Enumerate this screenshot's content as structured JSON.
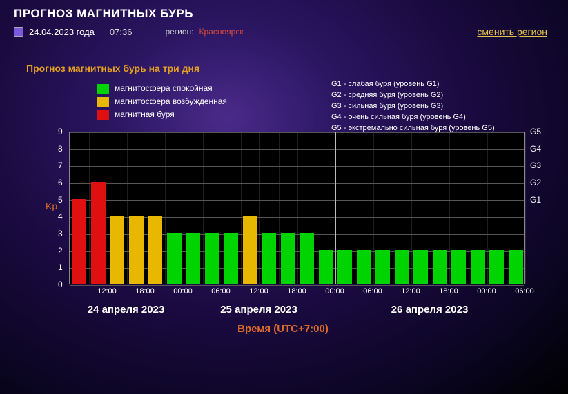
{
  "header": {
    "title": "ПРОГНОЗ МАГНИТНЫХ БУРЬ",
    "date": "24.04.2023 года",
    "time": "07:36",
    "region_label": "регион:",
    "region_value": "Красноярск",
    "change_region": "сменить регион"
  },
  "section_title": "Прогноз магнитных бурь на три дня",
  "legend": {
    "items": [
      {
        "color": "#00d400",
        "label": "магнитосфера спокойная"
      },
      {
        "color": "#e8b800",
        "label": "магнитосфера возбужденная"
      },
      {
        "color": "#e01010",
        "label": "магнитная буря"
      }
    ],
    "g_levels": [
      "G1 - слабая буря (уровень G1)",
      "G2 - средняя буря (уровень G2)",
      "G3 - сильная буря (уровень G3)",
      "G4 - очень сильная буря (уровень G4)",
      "G5 - экстремально сильная буря (уровень G5)"
    ]
  },
  "chart": {
    "type": "bar",
    "y": {
      "min": 0,
      "max": 9,
      "ticks": [
        0,
        1,
        2,
        3,
        4,
        5,
        6,
        7,
        8,
        9
      ],
      "label": "Kp"
    },
    "right_ticks": [
      {
        "v": 5,
        "label": "G1"
      },
      {
        "v": 6,
        "label": "G2"
      },
      {
        "v": 7,
        "label": "G3"
      },
      {
        "v": 8,
        "label": "G4"
      },
      {
        "v": 9,
        "label": "G5"
      }
    ],
    "background": "#000000",
    "gridline_color": "#555555",
    "day_divider_color": "#bbbbbb",
    "bar_gap_ratio": 0.22,
    "days": [
      {
        "label": "24 апреля 2023",
        "start_index": 0
      },
      {
        "label": "25 апреля 2023",
        "start_index": 6
      },
      {
        "label": "26 апреля 2023",
        "start_index": 14
      }
    ],
    "x_ticks": [
      {
        "index": 1,
        "label": "12:00"
      },
      {
        "index": 3,
        "label": "18:00"
      },
      {
        "index": 5,
        "label": "00:00"
      },
      {
        "index": 7,
        "label": "06:00"
      },
      {
        "index": 9,
        "label": "12:00"
      },
      {
        "index": 11,
        "label": "18:00"
      },
      {
        "index": 13,
        "label": "00:00"
      },
      {
        "index": 15,
        "label": "06:00"
      },
      {
        "index": 17,
        "label": "12:00"
      },
      {
        "index": 19,
        "label": "18:00"
      },
      {
        "index": 21,
        "label": "00:00"
      },
      {
        "index": 23,
        "label": "06:00"
      }
    ],
    "x_title": "Время (UTC+7:00)",
    "bars": [
      {
        "v": 5,
        "color": "#e01010"
      },
      {
        "v": 6,
        "color": "#e01010"
      },
      {
        "v": 4,
        "color": "#e8b800"
      },
      {
        "v": 4,
        "color": "#e8b800"
      },
      {
        "v": 4,
        "color": "#e8b800"
      },
      {
        "v": 3,
        "color": "#00d400"
      },
      {
        "v": 3,
        "color": "#00d400"
      },
      {
        "v": 3,
        "color": "#00d400"
      },
      {
        "v": 3,
        "color": "#00d400"
      },
      {
        "v": 4,
        "color": "#e8b800"
      },
      {
        "v": 3,
        "color": "#00d400"
      },
      {
        "v": 3,
        "color": "#00d400"
      },
      {
        "v": 3,
        "color": "#00d400"
      },
      {
        "v": 2,
        "color": "#00d400"
      },
      {
        "v": 2,
        "color": "#00d400"
      },
      {
        "v": 2,
        "color": "#00d400"
      },
      {
        "v": 2,
        "color": "#00d400"
      },
      {
        "v": 2,
        "color": "#00d400"
      },
      {
        "v": 2,
        "color": "#00d400"
      },
      {
        "v": 2,
        "color": "#00d400"
      },
      {
        "v": 2,
        "color": "#00d400"
      },
      {
        "v": 2,
        "color": "#00d400"
      },
      {
        "v": 2,
        "color": "#00d400"
      },
      {
        "v": 2,
        "color": "#00d400"
      }
    ]
  }
}
